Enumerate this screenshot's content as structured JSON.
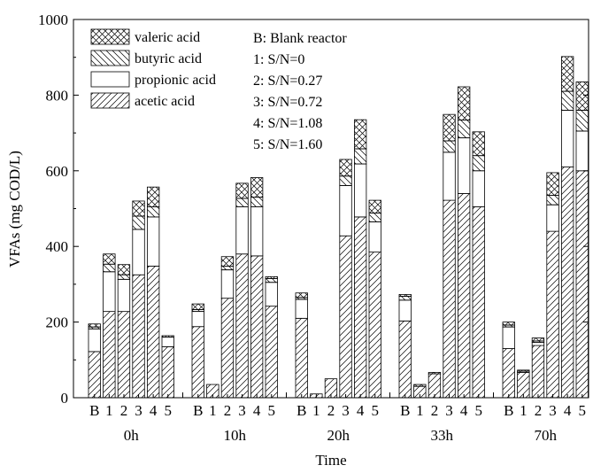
{
  "chart_data": {
    "type": "bar",
    "stacked": true,
    "xlabel": "Time",
    "ylabel": "VFAs (mg COD/L)",
    "ylim": [
      0,
      1000
    ],
    "yticks": [
      0,
      200,
      400,
      600,
      800,
      1000
    ],
    "bar_labels": [
      "B",
      "1",
      "2",
      "3",
      "4",
      "5"
    ],
    "groups": [
      {
        "label": "0h",
        "bars": [
          {
            "acetic": 122,
            "propionic": 60,
            "butyric": 5,
            "valeric": 8
          },
          {
            "acetic": 228,
            "propionic": 105,
            "butyric": 20,
            "valeric": 27
          },
          {
            "acetic": 228,
            "propionic": 85,
            "butyric": 12,
            "valeric": 27
          },
          {
            "acetic": 325,
            "propionic": 120,
            "butyric": 35,
            "valeric": 40
          },
          {
            "acetic": 348,
            "propionic": 130,
            "butyric": 27,
            "valeric": 52
          },
          {
            "acetic": 135,
            "propionic": 25,
            "butyric": 0,
            "valeric": 4
          }
        ]
      },
      {
        "label": "10h",
        "bars": [
          {
            "acetic": 188,
            "propionic": 40,
            "butyric": 5,
            "valeric": 15
          },
          {
            "acetic": 35,
            "propionic": 0,
            "butyric": 0,
            "valeric": 0
          },
          {
            "acetic": 263,
            "propionic": 75,
            "butyric": 10,
            "valeric": 25
          },
          {
            "acetic": 380,
            "propionic": 125,
            "butyric": 22,
            "valeric": 40
          },
          {
            "acetic": 375,
            "propionic": 130,
            "butyric": 25,
            "valeric": 52
          },
          {
            "acetic": 242,
            "propionic": 63,
            "butyric": 10,
            "valeric": 5
          }
        ]
      },
      {
        "label": "20h",
        "bars": [
          {
            "acetic": 210,
            "propionic": 50,
            "butyric": 5,
            "valeric": 12
          },
          {
            "acetic": 10,
            "propionic": 0,
            "butyric": 0,
            "valeric": 0
          },
          {
            "acetic": 50,
            "propionic": 0,
            "butyric": 0,
            "valeric": 0
          },
          {
            "acetic": 428,
            "propionic": 133,
            "butyric": 25,
            "valeric": 44
          },
          {
            "acetic": 478,
            "propionic": 140,
            "butyric": 40,
            "valeric": 77
          },
          {
            "acetic": 385,
            "propionic": 80,
            "butyric": 23,
            "valeric": 34
          }
        ]
      },
      {
        "label": "33h",
        "bars": [
          {
            "acetic": 203,
            "propionic": 55,
            "butyric": 10,
            "valeric": 5
          },
          {
            "acetic": 30,
            "propionic": 0,
            "butyric": 0,
            "valeric": 5
          },
          {
            "acetic": 63,
            "propionic": 0,
            "butyric": 0,
            "valeric": 4
          },
          {
            "acetic": 522,
            "propionic": 127,
            "butyric": 30,
            "valeric": 70
          },
          {
            "acetic": 540,
            "propionic": 147,
            "butyric": 47,
            "valeric": 88
          },
          {
            "acetic": 505,
            "propionic": 95,
            "butyric": 40,
            "valeric": 63
          }
        ]
      },
      {
        "label": "70h",
        "bars": [
          {
            "acetic": 130,
            "propionic": 57,
            "butyric": 5,
            "valeric": 8
          },
          {
            "acetic": 67,
            "propionic": 0,
            "butyric": 3,
            "valeric": 3
          },
          {
            "acetic": 138,
            "propionic": 8,
            "butyric": 4,
            "valeric": 8
          },
          {
            "acetic": 440,
            "propionic": 70,
            "butyric": 25,
            "valeric": 60
          },
          {
            "acetic": 610,
            "propionic": 150,
            "butyric": 50,
            "valeric": 92
          },
          {
            "acetic": 600,
            "propionic": 105,
            "butyric": 55,
            "valeric": 75
          }
        ]
      }
    ],
    "legend": {
      "placement": "top-left",
      "entries": [
        {
          "key": "valeric",
          "label": "valeric acid",
          "pattern": "cross-hatch"
        },
        {
          "key": "butyric",
          "label": "butyric acid",
          "pattern": "backslash-hatch"
        },
        {
          "key": "propionic",
          "label": "propionic acid",
          "pattern": "none"
        },
        {
          "key": "acetic",
          "label": "acetic acid",
          "pattern": "slash-hatch"
        }
      ]
    },
    "annotations": [
      "B: Blank reactor",
      "1: S/N=0",
      "2: S/N=0.27",
      "3: S/N=0.72",
      "4: S/N=1.08",
      "5: S/N=1.60"
    ]
  }
}
